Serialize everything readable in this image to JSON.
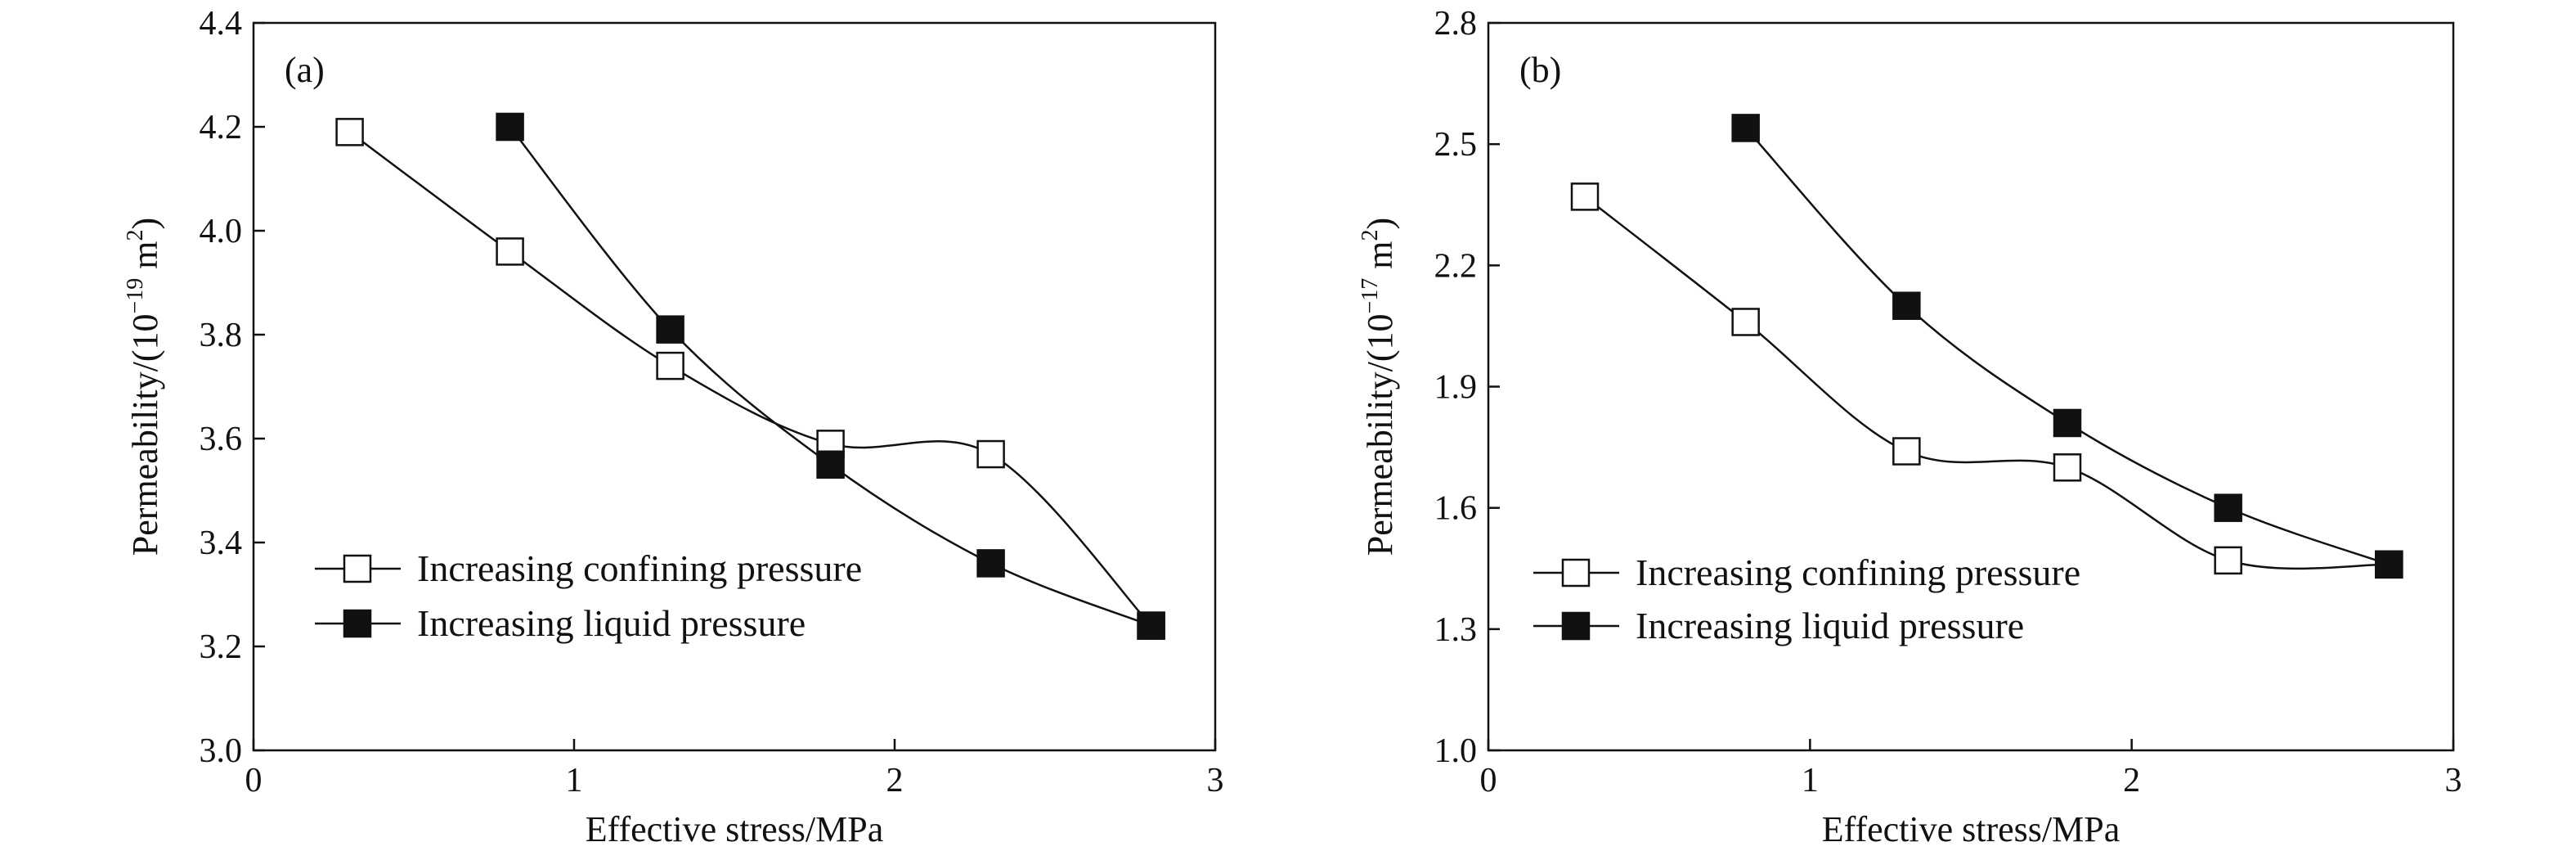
{
  "chart_data": [
    {
      "type": "line",
      "panel_label": "(a)",
      "xlabel": "Effective stress/MPa",
      "ylabel": "Permeability/(10",
      "ylabel_exponent": "−19",
      "ylabel_suffix": " m",
      "ylabel_unit_exponent": "2",
      "ylabel_close": ")",
      "xlim": [
        0,
        3
      ],
      "ylim": [
        3.0,
        4.4
      ],
      "xticks": [
        0,
        1,
        2,
        3
      ],
      "xtick_labels": [
        "0",
        "1",
        "2",
        "3"
      ],
      "yticks": [
        3.0,
        3.2,
        3.4,
        3.6,
        3.8,
        4.0,
        4.2,
        4.4
      ],
      "ytick_labels": [
        "3.0",
        "3.2",
        "3.4",
        "3.6",
        "3.8",
        "4.0",
        "4.2",
        "4.4"
      ],
      "legend_position": "bottom-left",
      "series": [
        {
          "name": "Increasing confining pressure",
          "marker": "open-square",
          "x": [
            0.3,
            0.8,
            1.3,
            1.8,
            2.3,
            2.8
          ],
          "y": [
            4.19,
            3.96,
            3.74,
            3.59,
            3.57,
            3.24
          ]
        },
        {
          "name": "Increasing liquid pressure",
          "marker": "filled-square",
          "x": [
            0.8,
            1.3,
            1.8,
            2.3,
            2.8
          ],
          "y": [
            4.2,
            3.81,
            3.55,
            3.36,
            3.24
          ]
        }
      ]
    },
    {
      "type": "line",
      "panel_label": "(b)",
      "xlabel": "Effective stress/MPa",
      "ylabel": "Permeability/(10",
      "ylabel_exponent": "−17",
      "ylabel_suffix": " m",
      "ylabel_unit_exponent": "2",
      "ylabel_close": ")",
      "xlim": [
        0,
        3
      ],
      "ylim": [
        1.0,
        2.8
      ],
      "xticks": [
        0,
        1,
        2,
        3
      ],
      "xtick_labels": [
        "0",
        "1",
        "2",
        "3"
      ],
      "yticks": [
        1.0,
        1.3,
        1.6,
        1.9,
        2.2,
        2.5,
        2.8
      ],
      "ytick_labels": [
        "1.0",
        "1.3",
        "1.6",
        "1.9",
        "2.2",
        "2.5",
        "2.8"
      ],
      "legend_position": "bottom-left",
      "series": [
        {
          "name": "Increasing confining pressure",
          "marker": "open-square",
          "x": [
            0.3,
            0.8,
            1.3,
            1.8,
            2.3,
            2.8
          ],
          "y": [
            2.37,
            2.06,
            1.74,
            1.7,
            1.47,
            1.46
          ]
        },
        {
          "name": "Increasing liquid pressure",
          "marker": "filled-square",
          "x": [
            0.8,
            1.3,
            1.8,
            2.3,
            2.8
          ],
          "y": [
            2.54,
            2.1,
            1.81,
            1.6,
            1.46
          ]
        }
      ]
    }
  ]
}
